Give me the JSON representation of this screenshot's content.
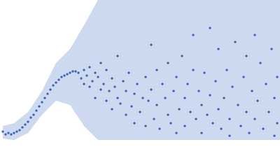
{
  "chart_data": {
    "type": "scatter",
    "xlim": [
      0,
      100
    ],
    "ylim": [
      0,
      100
    ],
    "band": {
      "color": "#cdd9ee",
      "x": [
        1,
        5,
        10,
        15,
        20,
        25,
        30,
        35,
        40,
        100
      ],
      "upper": [
        10,
        12,
        20,
        35,
        55,
        65,
        82,
        100,
        100,
        100
      ],
      "lower": [
        1,
        0,
        5,
        18,
        28,
        25,
        10,
        0,
        0,
        0
      ]
    },
    "series": [
      {
        "color": "#3a63b8",
        "x": [
          1,
          2,
          3,
          4,
          5,
          6,
          7,
          8,
          9,
          10,
          11,
          12,
          13,
          14,
          15,
          16,
          17,
          18,
          19,
          20,
          21,
          22,
          23,
          24,
          25,
          26,
          27,
          28,
          29,
          30,
          30,
          31,
          32,
          32,
          33,
          34,
          34,
          35,
          36,
          36,
          37,
          38,
          38,
          39,
          40,
          40,
          41,
          42,
          42,
          43,
          44,
          45,
          45,
          46,
          47,
          48,
          48,
          49,
          50,
          51,
          52,
          52,
          53,
          54,
          54,
          55,
          56,
          56,
          57,
          58,
          59,
          60,
          60,
          61,
          62,
          63,
          63,
          64,
          65,
          66,
          66,
          67,
          68,
          69,
          69,
          70,
          71,
          72,
          72,
          73,
          74,
          75,
          75,
          76,
          77,
          78,
          78,
          79,
          80,
          81,
          82,
          82,
          83,
          84,
          85,
          86,
          87,
          88,
          88,
          89,
          90,
          91,
          91,
          92,
          93,
          94,
          95,
          96,
          97,
          98,
          98,
          99,
          99
        ],
        "values": [
          6,
          4,
          5,
          4,
          5,
          6,
          7,
          9,
          11,
          13,
          16,
          18,
          21,
          24,
          27,
          30,
          33,
          36,
          39,
          41,
          43,
          45,
          46,
          47,
          48,
          49,
          49,
          48,
          44,
          50,
          40,
          46,
          52,
          38,
          42,
          48,
          30,
          45,
          36,
          55,
          40,
          28,
          50,
          35,
          44,
          22,
          38,
          30,
          60,
          26,
          42,
          18,
          35,
          48,
          24,
          33,
          12,
          40,
          20,
          30,
          45,
          10,
          28,
          68,
          36,
          15,
          50,
          25,
          8,
          40,
          30,
          18,
          55,
          12,
          35,
          45,
          5,
          22,
          60,
          30,
          10,
          40,
          20,
          75,
          50,
          15,
          35,
          25,
          5,
          48,
          18,
          80,
          32,
          12,
          42,
          65,
          22,
          8,
          30,
          50,
          15,
          3,
          38,
          70,
          25,
          10,
          45,
          60,
          20,
          5,
          35,
          75,
          15,
          28,
          55,
          8,
          40,
          20,
          65,
          30,
          3,
          45,
          12
        ]
      }
    ]
  }
}
